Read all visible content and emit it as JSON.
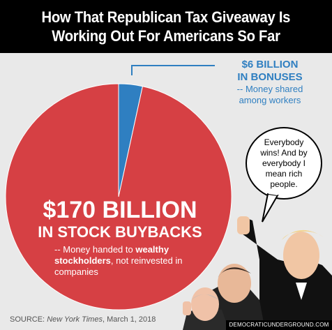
{
  "header": {
    "line1": "How That Republican Tax Giveaway Is",
    "line2": "Working Out For Americans So Far"
  },
  "chart_data": {
    "type": "pie",
    "slices": [
      {
        "label": "$170 BILLION IN STOCK BUYBACKS",
        "value": 170,
        "color": "#d64044"
      },
      {
        "label": "$6 BILLION IN BONUSES",
        "value": 6,
        "color": "#2f7fc1"
      }
    ]
  },
  "labels": {
    "small_title_1": "$6 BILLION",
    "small_title_2": "IN BONUSES",
    "small_sub_1": "-- Money shared",
    "small_sub_2": "among workers",
    "big_title_1": "$170 BILLION",
    "big_title_2": "IN STOCK BUYBACKS",
    "big_sub_a": "-- Money handed to ",
    "big_sub_b": "wealthy",
    "big_sub_c": "stockholders",
    "big_sub_d": ", not reinvested in companies"
  },
  "bubble": {
    "text": "Everybody wins! And by everybody I mean rich people."
  },
  "source": {
    "prefix": "SOURCE: ",
    "publication": "New York Times",
    "date": ", March 1, 2018"
  },
  "credit": "DEMOCRATICUNDERGROUND.COM"
}
